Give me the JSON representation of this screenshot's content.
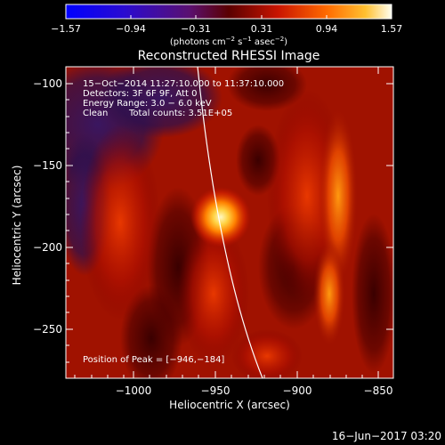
{
  "colorbar": {
    "ticks": [
      "−1.57",
      "−0.94",
      "−0.31",
      "0.31",
      "0.94",
      "1.57"
    ],
    "units_prefix": "(photons cm",
    "units_exp1": "−2",
    "units_mid1": " s",
    "units_exp2": "−1",
    "units_mid2": " asec",
    "units_exp3": "−2",
    "units_suffix": ")"
  },
  "title": "Reconstructed RHESSI Image",
  "info": {
    "line1": "15−Oct−2014 11:27:10.000 to 11:37:10.000",
    "line2": "Detectors: 3F 6F 9F, Att 0",
    "line3": "Energy Range: 3.0 − 6.0 keV",
    "line4_left": "Clean",
    "line4_right": "Total counts: 3.51E+05",
    "peak": "Position of Peak = [−946,−184]"
  },
  "axes": {
    "xlabel": "Heliocentric X (arcsec)",
    "ylabel": "Heliocentric Y (arcsec)",
    "xticks": [
      "−1000",
      "−950",
      "−900",
      "−850"
    ],
    "yticks": [
      "−100",
      "−150",
      "−200",
      "−250"
    ]
  },
  "timestamp": "16−Jun−2017 03:20"
}
